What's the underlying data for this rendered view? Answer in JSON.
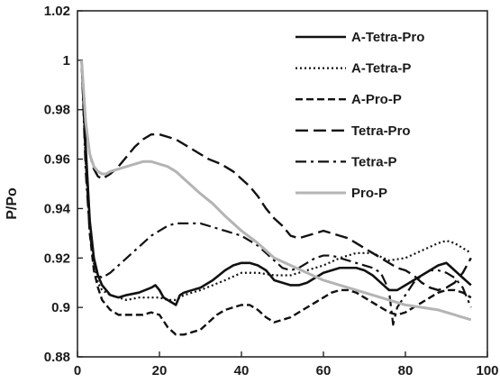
{
  "chart_data": {
    "type": "line",
    "title": "",
    "xlabel": "",
    "ylabel": "P/Po",
    "xlim": [
      0,
      100
    ],
    "ylim": [
      0.88,
      1.02
    ],
    "x_ticks": [
      "0",
      "20",
      "40",
      "60",
      "80",
      "100"
    ],
    "y_ticks": [
      "0.88",
      "0.9",
      "0.92",
      "0.94",
      "0.96",
      "0.98",
      "1",
      "1.02"
    ],
    "grid": false,
    "legend_position": "top-right",
    "series": [
      {
        "name": "A-Tetra-Pro",
        "color": "#111111",
        "style": "solid",
        "x": [
          1,
          2,
          3,
          4,
          5,
          6,
          8,
          10,
          12,
          15,
          18,
          19,
          20,
          21,
          22,
          23,
          24,
          25,
          26,
          28,
          30,
          33,
          36,
          38,
          40,
          42,
          44,
          46,
          48,
          50,
          52,
          54,
          56,
          58,
          60,
          62,
          64,
          66,
          68,
          70,
          72,
          74,
          76,
          78,
          80,
          82,
          84,
          86,
          88,
          90,
          92,
          94,
          96
        ],
        "y": [
          1.0,
          0.965,
          0.935,
          0.92,
          0.913,
          0.909,
          0.905,
          0.904,
          0.905,
          0.906,
          0.908,
          0.909,
          0.907,
          0.904,
          0.903,
          0.902,
          0.901,
          0.905,
          0.906,
          0.907,
          0.908,
          0.911,
          0.915,
          0.917,
          0.918,
          0.918,
          0.917,
          0.915,
          0.911,
          0.91,
          0.909,
          0.909,
          0.91,
          0.912,
          0.914,
          0.915,
          0.916,
          0.916,
          0.916,
          0.915,
          0.913,
          0.91,
          0.907,
          0.907,
          0.909,
          0.911,
          0.913,
          0.915,
          0.917,
          0.918,
          0.915,
          0.912,
          0.909
        ]
      },
      {
        "name": "A-Tetra-P",
        "color": "#111111",
        "style": "dotted",
        "x": [
          1,
          2,
          3,
          4,
          5,
          6,
          8,
          10,
          12,
          15,
          18,
          20,
          22,
          24,
          26,
          28,
          30,
          33,
          36,
          40,
          44,
          48,
          52,
          56,
          60,
          64,
          68,
          72,
          76,
          80,
          84,
          88,
          90,
          92,
          94,
          96
        ],
        "y": [
          1.0,
          0.965,
          0.935,
          0.918,
          0.91,
          0.907,
          0.905,
          0.904,
          0.903,
          0.904,
          0.904,
          0.904,
          0.903,
          0.903,
          0.905,
          0.906,
          0.907,
          0.909,
          0.911,
          0.914,
          0.914,
          0.913,
          0.913,
          0.915,
          0.917,
          0.92,
          0.922,
          0.922,
          0.919,
          0.92,
          0.923,
          0.926,
          0.927,
          0.926,
          0.924,
          0.922
        ]
      },
      {
        "name": "A-Pro-P",
        "color": "#111111",
        "style": "dashed",
        "x": [
          1,
          2,
          3,
          4,
          5,
          6,
          8,
          10,
          12,
          14,
          16,
          18,
          20,
          22,
          24,
          26,
          28,
          30,
          32,
          34,
          36,
          38,
          40,
          42,
          44,
          46,
          48,
          50,
          52,
          54,
          56,
          58,
          60,
          62,
          64,
          66,
          68,
          70,
          72,
          74,
          76,
          78,
          80,
          82,
          84,
          86,
          88,
          90,
          92,
          94,
          96
        ],
        "y": [
          1.0,
          0.96,
          0.93,
          0.915,
          0.908,
          0.903,
          0.899,
          0.897,
          0.897,
          0.897,
          0.897,
          0.898,
          0.897,
          0.892,
          0.889,
          0.889,
          0.89,
          0.891,
          0.894,
          0.897,
          0.899,
          0.9,
          0.901,
          0.901,
          0.899,
          0.896,
          0.894,
          0.895,
          0.896,
          0.898,
          0.9,
          0.902,
          0.904,
          0.906,
          0.907,
          0.907,
          0.906,
          0.904,
          0.902,
          0.9,
          0.898,
          0.897,
          0.898,
          0.9,
          0.902,
          0.904,
          0.906,
          0.907,
          0.907,
          0.906,
          0.904
        ]
      },
      {
        "name": "Tetra-Pro",
        "color": "#111111",
        "style": "long-dash",
        "x": [
          1,
          2,
          3,
          4,
          5,
          6,
          8,
          10,
          12,
          14,
          16,
          18,
          20,
          22,
          24,
          26,
          28,
          30,
          32,
          35,
          38,
          40,
          42,
          44,
          46,
          48,
          50,
          52,
          54,
          56,
          58,
          60,
          62,
          64,
          66,
          68,
          70,
          72,
          74,
          76,
          78,
          80,
          82,
          84,
          86,
          88,
          90,
          92,
          94,
          96
        ],
        "y": [
          1.0,
          0.975,
          0.962,
          0.956,
          0.953,
          0.952,
          0.954,
          0.957,
          0.961,
          0.965,
          0.968,
          0.97,
          0.97,
          0.969,
          0.968,
          0.966,
          0.964,
          0.962,
          0.96,
          0.958,
          0.955,
          0.952,
          0.949,
          0.945,
          0.94,
          0.936,
          0.933,
          0.929,
          0.928,
          0.929,
          0.93,
          0.931,
          0.93,
          0.929,
          0.928,
          0.926,
          0.924,
          0.922,
          0.92,
          0.918,
          0.916,
          0.915,
          0.913,
          0.91,
          0.908,
          0.907,
          0.908,
          0.91,
          0.914,
          0.92
        ]
      },
      {
        "name": "Tetra-P",
        "color": "#111111",
        "style": "dash-dot",
        "x": [
          1,
          2,
          3,
          4,
          5,
          6,
          8,
          10,
          12,
          14,
          16,
          18,
          20,
          22,
          24,
          26,
          28,
          30,
          32,
          34,
          36,
          38,
          40,
          42,
          44,
          46,
          48,
          50,
          52,
          54,
          56,
          58,
          60,
          62,
          64,
          66,
          68,
          70,
          72,
          74,
          76,
          77,
          78,
          80,
          82,
          84,
          86,
          88,
          90,
          92,
          94,
          96
        ],
        "y": [
          1.0,
          0.955,
          0.93,
          0.918,
          0.913,
          0.912,
          0.914,
          0.917,
          0.92,
          0.923,
          0.926,
          0.929,
          0.931,
          0.933,
          0.934,
          0.934,
          0.934,
          0.934,
          0.933,
          0.932,
          0.931,
          0.93,
          0.929,
          0.927,
          0.925,
          0.922,
          0.919,
          0.916,
          0.915,
          0.916,
          0.918,
          0.92,
          0.921,
          0.921,
          0.92,
          0.919,
          0.918,
          0.917,
          0.916,
          0.914,
          0.907,
          0.893,
          0.9,
          0.905,
          0.91,
          0.913,
          0.915,
          0.915,
          0.914,
          0.912,
          0.908,
          0.9
        ]
      },
      {
        "name": "Pro-P",
        "color": "#b4b4b4",
        "style": "solid",
        "x": [
          1,
          2,
          3,
          4,
          5,
          6,
          7,
          8,
          10,
          12,
          14,
          16,
          18,
          20,
          22,
          24,
          26,
          28,
          30,
          33,
          36,
          40,
          44,
          48,
          52,
          56,
          60,
          64,
          68,
          72,
          76,
          80,
          84,
          88,
          92,
          96
        ],
        "y": [
          1.0,
          0.975,
          0.962,
          0.957,
          0.955,
          0.954,
          0.954,
          0.955,
          0.956,
          0.957,
          0.958,
          0.959,
          0.959,
          0.958,
          0.957,
          0.955,
          0.952,
          0.949,
          0.946,
          0.942,
          0.937,
          0.931,
          0.926,
          0.92,
          0.917,
          0.914,
          0.911,
          0.909,
          0.907,
          0.905,
          0.903,
          0.901,
          0.9,
          0.899,
          0.897,
          0.895
        ]
      }
    ]
  }
}
